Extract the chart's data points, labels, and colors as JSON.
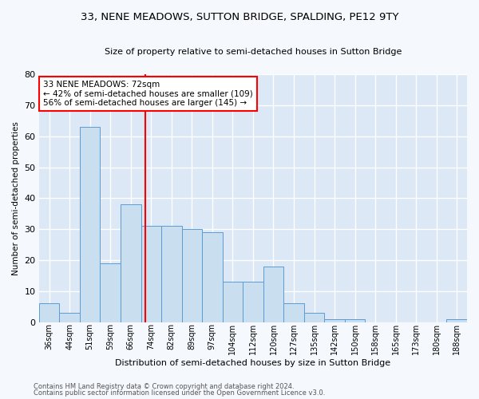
{
  "title": "33, NENE MEADOWS, SUTTON BRIDGE, SPALDING, PE12 9TY",
  "subtitle": "Size of property relative to semi-detached houses in Sutton Bridge",
  "xlabel_bottom": "Distribution of semi-detached houses by size in Sutton Bridge",
  "ylabel": "Number of semi-detached properties",
  "categories": [
    "36sqm",
    "44sqm",
    "51sqm",
    "59sqm",
    "66sqm",
    "74sqm",
    "82sqm",
    "89sqm",
    "97sqm",
    "104sqm",
    "112sqm",
    "120sqm",
    "127sqm",
    "135sqm",
    "142sqm",
    "150sqm",
    "158sqm",
    "165sqm",
    "173sqm",
    "180sqm",
    "188sqm"
  ],
  "values": [
    6,
    3,
    63,
    19,
    38,
    31,
    31,
    30,
    29,
    13,
    13,
    18,
    6,
    3,
    1,
    1,
    0,
    0,
    0,
    0,
    1
  ],
  "bar_color": "#c9dff0",
  "bar_edge_color": "#5b9bd5",
  "axes_bg_color": "#dce8f5",
  "grid_color": "#ffffff",
  "annotation_box_text": "33 NENE MEADOWS: 72sqm\n← 42% of semi-detached houses are smaller (109)\n56% of semi-detached houses are larger (145) →",
  "annotation_box_color": "white",
  "annotation_box_edge_color": "red",
  "vline_x": 4.72,
  "vline_color": "red",
  "footer1": "Contains HM Land Registry data © Crown copyright and database right 2024.",
  "footer2": "Contains public sector information licensed under the Open Government Licence v3.0.",
  "ylim": [
    0,
    80
  ],
  "yticks": [
    0,
    10,
    20,
    30,
    40,
    50,
    60,
    70,
    80
  ],
  "fig_bg_color": "#f5f8fc",
  "title_fontsize": 9.5,
  "subtitle_fontsize": 8.0,
  "ylabel_fontsize": 7.5,
  "xtick_fontsize": 7.0,
  "ytick_fontsize": 8.0,
  "annotation_fontsize": 7.5,
  "footer_fontsize": 6.0
}
